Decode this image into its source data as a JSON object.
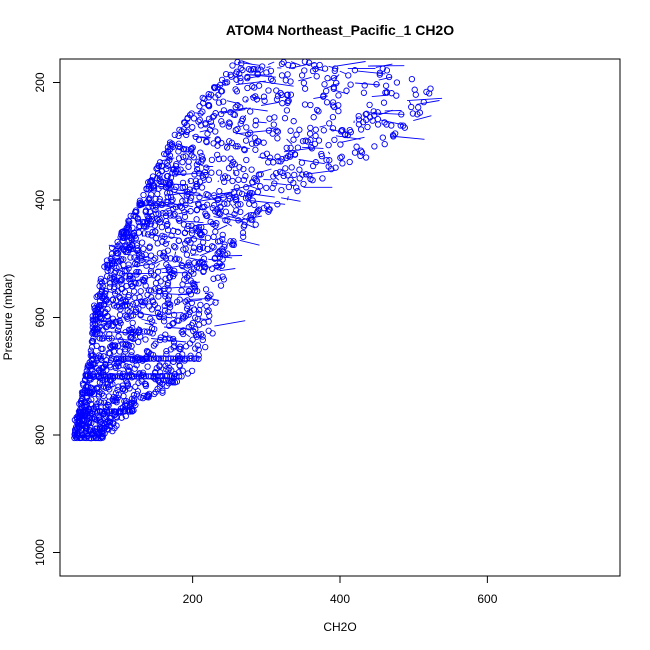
{
  "chart_data": {
    "type": "scatter",
    "title": "ATOM4 Northeast_Pacific_1 CH2O",
    "xlabel": "CH2O",
    "ylabel": "Pressure (mbar)",
    "xlim": [
      20,
      780
    ],
    "ylim": [
      1040,
      160
    ],
    "y_inverted": true,
    "x_ticks": [
      200,
      400,
      600
    ],
    "y_ticks": [
      200,
      400,
      600,
      800,
      1000
    ],
    "x_tick_labels": [
      "200",
      "400",
      "600"
    ],
    "y_tick_labels": [
      "200",
      "400",
      "600",
      "800",
      "1000"
    ],
    "grid": false,
    "legend": "none",
    "series_color": "#0000ff",
    "marker": "open-circle",
    "connected_by_lines": true,
    "trend": [
      {
        "pressure": 805,
        "ch2o_min": 40,
        "ch2o_max": 80
      },
      {
        "pressure": 760,
        "ch2o_min": 45,
        "ch2o_max": 120
      },
      {
        "pressure": 700,
        "ch2o_min": 55,
        "ch2o_max": 190
      },
      {
        "pressure": 670,
        "ch2o_min": 60,
        "ch2o_max": 215
      },
      {
        "pressure": 600,
        "ch2o_min": 65,
        "ch2o_max": 235
      },
      {
        "pressure": 500,
        "ch2o_min": 85,
        "ch2o_max": 245
      },
      {
        "pressure": 400,
        "ch2o_min": 130,
        "ch2o_max": 320
      },
      {
        "pressure": 300,
        "ch2o_min": 170,
        "ch2o_max": 480
      },
      {
        "pressure": 220,
        "ch2o_min": 220,
        "ch2o_max": 540
      },
      {
        "pressure": 165,
        "ch2o_min": 260,
        "ch2o_max": 470
      }
    ],
    "horizontal_bands": [
      {
        "pressure": 805,
        "ch2o_min": 40,
        "ch2o_max": 80
      },
      {
        "pressure": 760,
        "ch2o_min": 45,
        "ch2o_max": 120
      },
      {
        "pressure": 700,
        "ch2o_min": 60,
        "ch2o_max": 185
      },
      {
        "pressure": 670,
        "ch2o_min": 90,
        "ch2o_max": 210
      }
    ]
  }
}
